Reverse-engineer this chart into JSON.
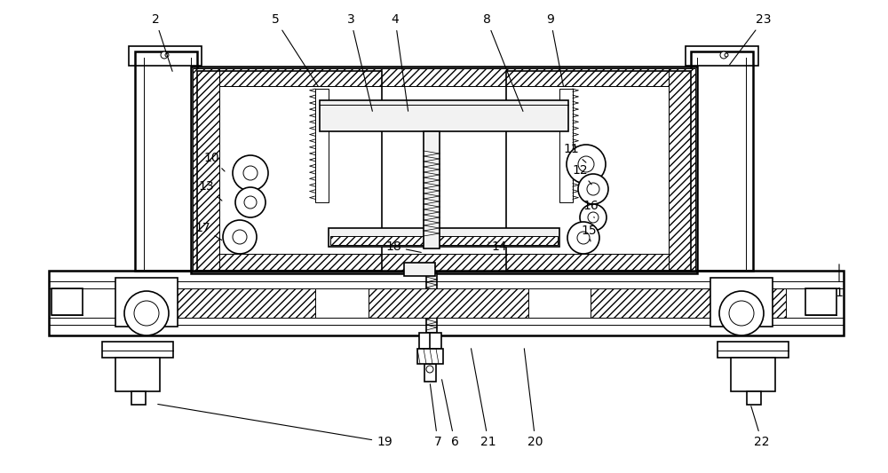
{
  "bg_color": "#ffffff",
  "lw_thick": 1.8,
  "lw_mid": 1.2,
  "lw_thin": 0.7,
  "gray_fill": "#d8d8d8",
  "light_fill": "#f2f2f2",
  "annotations": [
    [
      "2",
      175,
      22,
      195,
      83
    ],
    [
      "5",
      310,
      22,
      360,
      100
    ],
    [
      "3",
      395,
      22,
      420,
      128
    ],
    [
      "4",
      445,
      22,
      460,
      128
    ],
    [
      "8",
      548,
      22,
      590,
      128
    ],
    [
      "9",
      620,
      22,
      635,
      100
    ],
    [
      "23",
      860,
      22,
      820,
      75
    ],
    [
      "10",
      238,
      178,
      255,
      195
    ],
    [
      "13",
      232,
      210,
      252,
      228
    ],
    [
      "17",
      228,
      257,
      252,
      272
    ],
    [
      "11",
      643,
      168,
      662,
      185
    ],
    [
      "12",
      653,
      192,
      668,
      210
    ],
    [
      "16",
      665,
      232,
      670,
      248
    ],
    [
      "15",
      663,
      260,
      665,
      272
    ],
    [
      "14",
      562,
      278,
      550,
      273
    ],
    [
      "18",
      443,
      278,
      477,
      285
    ],
    [
      "1",
      945,
      330,
      945,
      295
    ],
    [
      "19",
      433,
      498,
      175,
      455
    ],
    [
      "7",
      493,
      498,
      484,
      430
    ],
    [
      "6",
      512,
      498,
      497,
      425
    ],
    [
      "21",
      550,
      498,
      530,
      390
    ],
    [
      "20",
      603,
      498,
      590,
      390
    ],
    [
      "22",
      858,
      498,
      845,
      455
    ]
  ]
}
